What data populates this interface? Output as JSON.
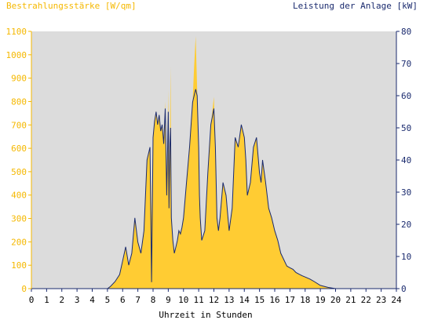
{
  "chart_data": {
    "type": "area",
    "title_left": "Bestrahlungsstärke [W/qm]",
    "title_right": "Leistung der Anlage [kW]",
    "xlabel": "Uhrzeit in Stunden",
    "xlim": [
      0,
      24
    ],
    "ylim_left": [
      0,
      1100
    ],
    "ylim_right": [
      0,
      80
    ],
    "x_ticks": [
      "0",
      "1",
      "2",
      "3",
      "4",
      "5",
      "6",
      "7",
      "8",
      "9",
      "10",
      "11",
      "12",
      "13",
      "14",
      "15",
      "16",
      "17",
      "18",
      "19",
      "20",
      "21",
      "22",
      "23",
      "24"
    ],
    "y_left_ticks": [
      "0",
      "100",
      "200",
      "300",
      "400",
      "500",
      "600",
      "700",
      "800",
      "900",
      "1000",
      "1100"
    ],
    "y_right_ticks": [
      "0",
      "10",
      "20",
      "30",
      "40",
      "50",
      "60",
      "70",
      "80"
    ],
    "colors": {
      "irradiance": "#ffcc33",
      "power": "#1a2a6e",
      "plot_bg": "#dcdcdc"
    },
    "series": [
      {
        "name": "Bestrahlungsstärke [W/qm]",
        "axis": "left",
        "x": [
          0,
          5.0,
          5.2,
          5.5,
          5.8,
          6.0,
          6.2,
          6.4,
          6.6,
          6.8,
          7.0,
          7.2,
          7.4,
          7.6,
          7.8,
          7.9,
          8.0,
          8.1,
          8.2,
          8.3,
          8.4,
          8.5,
          8.6,
          8.7,
          8.8,
          8.9,
          9.0,
          9.05,
          9.1,
          9.15,
          9.2,
          9.3,
          9.4,
          9.5,
          9.6,
          9.7,
          9.8,
          9.9,
          10.0,
          10.2,
          10.4,
          10.6,
          10.7,
          10.8,
          10.9,
          11.0,
          11.05,
          11.1,
          11.2,
          11.4,
          11.6,
          11.8,
          12.0,
          12.1,
          12.2,
          12.3,
          12.4,
          12.6,
          12.8,
          13.0,
          13.2,
          13.4,
          13.6,
          13.8,
          14.0,
          14.1,
          14.2,
          14.4,
          14.6,
          14.8,
          15.0,
          15.1,
          15.2,
          15.4,
          15.6,
          15.8,
          16.0,
          16.2,
          16.4,
          16.6,
          16.8,
          17.0,
          17.2,
          17.4,
          17.6,
          17.8,
          18.0,
          18.3,
          18.6,
          19.0,
          19.5,
          20.0,
          24.0
        ],
        "values": [
          0,
          0,
          10,
          30,
          60,
          120,
          180,
          100,
          150,
          300,
          200,
          150,
          250,
          550,
          600,
          300,
          650,
          720,
          760,
          700,
          740,
          680,
          700,
          620,
          800,
          400,
          850,
          350,
          600,
          950,
          300,
          200,
          150,
          180,
          200,
          250,
          240,
          260,
          300,
          450,
          600,
          800,
          950,
          1080,
          850,
          600,
          400,
          300,
          200,
          250,
          500,
          700,
          820,
          600,
          300,
          250,
          300,
          450,
          400,
          250,
          350,
          650,
          600,
          700,
          650,
          550,
          400,
          450,
          600,
          650,
          500,
          450,
          550,
          450,
          350,
          300,
          250,
          200,
          150,
          120,
          100,
          90,
          80,
          70,
          60,
          55,
          50,
          40,
          30,
          15,
          5,
          0,
          0
        ]
      },
      {
        "name": "Leistung der Anlage [kW]",
        "axis": "right",
        "x": [
          0,
          5.0,
          5.2,
          5.5,
          5.8,
          6.0,
          6.2,
          6.4,
          6.6,
          6.8,
          7.0,
          7.2,
          7.4,
          7.6,
          7.8,
          7.9,
          8.0,
          8.1,
          8.2,
          8.3,
          8.4,
          8.5,
          8.6,
          8.7,
          8.8,
          8.9,
          9.0,
          9.05,
          9.1,
          9.15,
          9.2,
          9.3,
          9.4,
          9.5,
          9.6,
          9.7,
          9.8,
          9.9,
          10.0,
          10.2,
          10.4,
          10.6,
          10.7,
          10.8,
          10.9,
          11.0,
          11.05,
          11.1,
          11.2,
          11.4,
          11.6,
          11.8,
          12.0,
          12.1,
          12.2,
          12.3,
          12.4,
          12.6,
          12.8,
          13.0,
          13.2,
          13.4,
          13.6,
          13.8,
          14.0,
          14.1,
          14.2,
          14.4,
          14.6,
          14.8,
          15.0,
          15.1,
          15.2,
          15.4,
          15.6,
          15.8,
          16.0,
          16.2,
          16.4,
          16.6,
          16.8,
          17.0,
          17.2,
          17.4,
          17.6,
          17.8,
          18.0,
          18.3,
          18.6,
          19.0,
          19.5,
          20.0,
          24.0
        ],
        "values": [
          0,
          0,
          0.7,
          2.2,
          4.4,
          8.7,
          13,
          7.3,
          11,
          22,
          14.5,
          11,
          18,
          40,
          44,
          2,
          47,
          52,
          55,
          51,
          54,
          49,
          51,
          45,
          56,
          29,
          55,
          25,
          44,
          50,
          22,
          15,
          11,
          13,
          15,
          18,
          17,
          19,
          22,
          33,
          44,
          58,
          60,
          62,
          60,
          44,
          29,
          22,
          15,
          18,
          36,
          51,
          56,
          44,
          22,
          18,
          22,
          33,
          29,
          18,
          25,
          47,
          44,
          51,
          47,
          40,
          29,
          33,
          44,
          47,
          36,
          33,
          40,
          33,
          25,
          22,
          18,
          15,
          11,
          9,
          7,
          6.5,
          6,
          5,
          4.5,
          4,
          3.6,
          3,
          2.2,
          1,
          0.4,
          0,
          0
        ]
      }
    ]
  }
}
